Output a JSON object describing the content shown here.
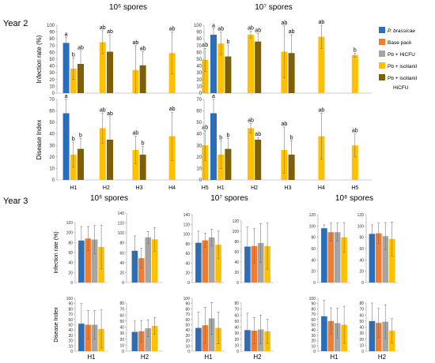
{
  "colors": {
    "P. brassicae": "#2A6EBB",
    "Base pack": "#EE7D31",
    "Pb + HiCFU": "#A5A5A5",
    "Pb + isotianil": "#FFC000",
    "Pb + isotianil HiCFU": "#7F5F00"
  },
  "legend": {
    "items": [
      {
        "key": "P. brassicae",
        "label": "P. brassicae"
      },
      {
        "key": "Base pack",
        "label": "Base pack"
      },
      {
        "key": "Pb + HiCFU",
        "label": "Pb + HiCFU"
      },
      {
        "key": "Pb + isotianil",
        "label": "Pb + isotianil"
      },
      {
        "key": "Pb + isotianil HiCFU",
        "label": "Pb + isotianil",
        "label2": "HiCFU"
      }
    ]
  },
  "section_titles": {
    "year2": "Year 2",
    "year3": "Year 3",
    "y2_col1": "10⁶ spores",
    "y2_col2": "10⁷ spores",
    "y3_col1": "10⁶ spores",
    "y3_col2": "10⁷ spores",
    "y3_col3": "10⁸ spores"
  },
  "y_labels": {
    "infection": "Infection rate (%)",
    "disease": "Disease Index"
  },
  "chart_data": [
    {
      "type": "bar",
      "id": "y2-10e6-infection",
      "ylabel": "Infection rate (%)",
      "ylim": [
        0,
        100
      ],
      "ticks": [
        0,
        10,
        20,
        30,
        40,
        50,
        60,
        70,
        80,
        90,
        100
      ],
      "categories": [
        "H1",
        "H2",
        "H3",
        "H4",
        "H5"
      ],
      "show_xticks": false,
      "groups": [
        {
          "cat": "H1",
          "bars": [
            {
              "s": "P. brassicae",
              "v": 74,
              "e": 8,
              "l": "a"
            },
            {
              "s": "Pb + isotianil",
              "v": 36,
              "e": 16,
              "l": "b"
            },
            {
              "s": "Pb + isotianil HiCFU",
              "v": 43,
              "e": 19,
              "l": "ab"
            }
          ]
        },
        {
          "cat": "H2",
          "bars": [
            {
              "s": "Pb + isotianil",
              "v": 75,
              "e": 17,
              "l": "ab"
            },
            {
              "s": "Pb + isotianil HiCFU",
              "v": 61,
              "e": 25,
              "l": "ab"
            }
          ]
        },
        {
          "cat": "H3",
          "bars": [
            {
              "s": "Pb + isotianil",
              "v": 34,
              "e": 36,
              "l": "ab"
            },
            {
              "s": "Pb + isotianil HiCFU",
              "v": 41,
              "e": 20,
              "l": "ab"
            }
          ]
        },
        {
          "cat": "H4",
          "bars": [
            {
              "s": "Pb + isotianil",
              "v": 59,
              "e": 31,
              "l": "ab"
            }
          ]
        },
        {
          "cat": "H5",
          "bars": [
            {
              "s": "Pb + isotianil",
              "v": 49,
              "e": 17,
              "l": "ab"
            }
          ]
        }
      ]
    },
    {
      "type": "bar",
      "id": "y2-10e7-infection",
      "ylabel": "",
      "ylim": [
        0,
        100
      ],
      "ticks": [
        0,
        10,
        20,
        30,
        40,
        50,
        60,
        70,
        80,
        90,
        100
      ],
      "categories": [
        "H1",
        "H2",
        "H3",
        "H4",
        "H5"
      ],
      "show_xticks": false,
      "groups": [
        {
          "cat": "H1",
          "bars": [
            {
              "s": "P. brassicae",
              "v": 86,
              "e": 9,
              "l": "a"
            },
            {
              "s": "Pb + isotianil",
              "v": 73,
              "e": 17,
              "l": "ab"
            },
            {
              "s": "Pb + isotianil HiCFU",
              "v": 54,
              "e": 17,
              "l": "b"
            }
          ]
        },
        {
          "cat": "H2",
          "bars": [
            {
              "s": "Pb + isotianil",
              "v": 86,
              "e": 5,
              "l": "ab"
            },
            {
              "s": "Pb + isotianil HiCFU",
              "v": 76,
              "e": 12,
              "l": "ab"
            }
          ]
        },
        {
          "cat": "H3",
          "bars": [
            {
              "s": "Pb + isotianil",
              "v": 61,
              "e": 38,
              "l": "ab"
            },
            {
              "s": "Pb + isotianil HiCFU",
              "v": 59,
              "e": 27,
              "l": "ab"
            }
          ]
        },
        {
          "cat": "H4",
          "bars": [
            {
              "s": "Pb + isotianil",
              "v": 83,
              "e": 17,
              "l": "ab"
            }
          ]
        },
        {
          "cat": "H5",
          "bars": [
            {
              "s": "Pb + isotianil",
              "v": 56,
              "e": 3,
              "l": "b"
            }
          ]
        }
      ]
    },
    {
      "type": "bar",
      "id": "y2-10e6-disease",
      "ylabel": "Disease Index",
      "ylim": [
        0,
        70
      ],
      "ticks": [
        0,
        10,
        20,
        30,
        40,
        50,
        60,
        70
      ],
      "categories": [
        "H1",
        "H2",
        "H3",
        "H4",
        "H5"
      ],
      "show_xticks": true,
      "groups": [
        {
          "cat": "H1",
          "bars": [
            {
              "s": "P. brassicae",
              "v": 58,
              "e": 12,
              "l": "a"
            },
            {
              "s": "Pb + isotianil",
              "v": 22,
              "e": 11,
              "l": "b"
            },
            {
              "s": "Pb + isotianil HiCFU",
              "v": 27,
              "e": 9,
              "l": "b"
            }
          ]
        },
        {
          "cat": "H2",
          "bars": [
            {
              "s": "Pb + isotianil",
              "v": 45,
              "e": 13,
              "l": "ab"
            },
            {
              "s": "Pb + isotianil HiCFU",
              "v": 35,
              "e": 20,
              "l": "ab"
            }
          ]
        },
        {
          "cat": "H3",
          "bars": [
            {
              "s": "Pb + isotianil",
              "v": 26,
              "e": 12,
              "l": "ab"
            },
            {
              "s": "Pb + isotianil HiCFU",
              "v": 22,
              "e": 7,
              "l": "b"
            }
          ]
        },
        {
          "cat": "H4",
          "bars": [
            {
              "s": "Pb + isotianil",
              "v": 38,
              "e": 21,
              "l": "ab"
            }
          ]
        },
        {
          "cat": "H5",
          "bars": [
            {
              "s": "Pb + isotianil",
              "v": 30,
              "e": 13,
              "l": "ab"
            }
          ]
        }
      ]
    },
    {
      "type": "bar",
      "id": "y2-10e7-disease",
      "ylabel": "",
      "ylim": [
        0,
        70
      ],
      "ticks": [
        0,
        10,
        20,
        30,
        40,
        50,
        60,
        70
      ],
      "categories": [
        "H1",
        "H2",
        "H3",
        "H4",
        "H5"
      ],
      "show_xticks": true,
      "groups": [
        {
          "cat": "H1",
          "bars": [
            {
              "s": "P. brassicae",
              "v": 58,
              "e": 12,
              "l": "a"
            },
            {
              "s": "Pb + isotianil",
              "v": 22,
              "e": 12,
              "l": "b"
            },
            {
              "s": "Pb + isotianil HiCFU",
              "v": 27,
              "e": 9,
              "l": "b"
            }
          ]
        },
        {
          "cat": "H2",
          "bars": [
            {
              "s": "Pb + isotianil",
              "v": 45,
              "e": 4,
              "l": "ab"
            },
            {
              "s": "Pb + isotianil HiCFU",
              "v": 35,
              "e": 2,
              "l": "ab"
            }
          ]
        },
        {
          "cat": "H3",
          "bars": [
            {
              "s": "Pb + isotianil",
              "v": 26,
              "e": 20,
              "l": "ab"
            },
            {
              "s": "Pb + isotianil HiCFU",
              "v": 22,
              "e": 12,
              "l": "b"
            }
          ]
        },
        {
          "cat": "H4",
          "bars": [
            {
              "s": "Pb + isotianil",
              "v": 38,
              "e": 20,
              "l": "ab"
            }
          ]
        },
        {
          "cat": "H5",
          "bars": [
            {
              "s": "Pb + isotianil",
              "v": 30,
              "e": 10,
              "l": "ab"
            }
          ]
        }
      ]
    },
    {
      "type": "bar",
      "id": "y3-10e6-H1-inf",
      "ylabel": "Infection rate (%)",
      "ylim": [
        0,
        120
      ],
      "ticks": [
        0,
        20,
        40,
        60,
        80,
        100,
        120
      ],
      "categories": [
        "H1"
      ],
      "show_xticks": false,
      "groups": [
        {
          "cat": "H1",
          "bars": [
            {
              "s": "P. brassicae",
              "v": 84,
              "e": 28
            },
            {
              "s": "Base pack",
              "v": 88,
              "e": 24
            },
            {
              "s": "Pb + HiCFU",
              "v": 86,
              "e": 28
            },
            {
              "s": "Pb + isotianil",
              "v": 71,
              "e": 44
            }
          ]
        }
      ]
    },
    {
      "type": "bar",
      "id": "y3-10e6-H2-inf",
      "ylabel": "",
      "ylim": [
        0,
        140
      ],
      "ticks": [
        0,
        20,
        40,
        60,
        80,
        100,
        120,
        140
      ],
      "categories": [
        "H2"
      ],
      "show_xticks": false,
      "groups": [
        {
          "cat": "H2",
          "bars": [
            {
              "s": "P. brassicae",
              "v": 64,
              "e": 30
            },
            {
              "s": "Base pack",
              "v": 49,
              "e": 20
            },
            {
              "s": "Pb + HiCFU",
              "v": 91,
              "e": 12
            },
            {
              "s": "Pb + isotianil",
              "v": 87,
              "e": 24
            }
          ]
        }
      ]
    },
    {
      "type": "bar",
      "id": "y3-10e7-H1-inf",
      "ylabel": "",
      "ylim": [
        0,
        140
      ],
      "ticks": [
        0,
        20,
        40,
        60,
        80,
        100,
        120,
        140
      ],
      "categories": [
        "H1"
      ],
      "show_xticks": false,
      "groups": [
        {
          "cat": "H1",
          "bars": [
            {
              "s": "P. brassicae",
              "v": 82,
              "e": 24
            },
            {
              "s": "Base pack",
              "v": 87,
              "e": 15
            },
            {
              "s": "Pb + HiCFU",
              "v": 93,
              "e": 17
            },
            {
              "s": "Pb + isotianil",
              "v": 78,
              "e": 28
            }
          ]
        }
      ]
    },
    {
      "type": "bar",
      "id": "y3-10e7-H2-inf",
      "ylabel": "",
      "ylim": [
        0,
        120
      ],
      "ticks": [
        0,
        20,
        40,
        60,
        80,
        100,
        120
      ],
      "categories": [
        "H2"
      ],
      "show_xticks": false,
      "groups": [
        {
          "cat": "H2",
          "bars": [
            {
              "s": "P. brassicae",
              "v": 70,
              "e": 38
            },
            {
              "s": "Base pack",
              "v": 71,
              "e": 34
            },
            {
              "s": "Pb + HiCFU",
              "v": 77,
              "e": 38
            },
            {
              "s": "Pb + isotianil",
              "v": 71,
              "e": 45
            }
          ]
        }
      ]
    },
    {
      "type": "bar",
      "id": "y3-10e8-H1-inf",
      "ylabel": "",
      "ylim": [
        0,
        120
      ],
      "ticks": [
        0,
        20,
        40,
        60,
        80,
        100,
        120
      ],
      "categories": [
        "H1"
      ],
      "show_xticks": false,
      "groups": [
        {
          "cat": "H1",
          "bars": [
            {
              "s": "P. brassicae",
              "v": 96,
              "e": 6
            },
            {
              "s": "Base pack",
              "v": 89,
              "e": 16
            },
            {
              "s": "Pb + HiCFU",
              "v": 89,
              "e": 16
            },
            {
              "s": "Pb + isotianil",
              "v": 80,
              "e": 26
            }
          ]
        }
      ]
    },
    {
      "type": "bar",
      "id": "y3-10e8-H2-inf",
      "ylabel": "",
      "ylim": [
        0,
        120
      ],
      "ticks": [
        0,
        20,
        40,
        60,
        80,
        100,
        120
      ],
      "categories": [
        "H2"
      ],
      "show_xticks": false,
      "groups": [
        {
          "cat": "H2",
          "bars": [
            {
              "s": "P. brassicae",
              "v": 86,
              "e": 16
            },
            {
              "s": "Base pack",
              "v": 87,
              "e": 18
            },
            {
              "s": "Pb + HiCFU",
              "v": 82,
              "e": 24
            },
            {
              "s": "Pb + isotianil",
              "v": 77,
              "e": 30
            }
          ]
        }
      ]
    },
    {
      "type": "bar",
      "id": "y3-10e6-H1-di",
      "ylabel": "Disease Index",
      "ylim": [
        0,
        100
      ],
      "ticks": [
        0,
        10,
        20,
        30,
        40,
        50,
        60,
        70,
        80,
        90,
        100
      ],
      "categories": [
        "H1"
      ],
      "show_xticks": true,
      "groups": [
        {
          "cat": "H1",
          "bars": [
            {
              "s": "P. brassicae",
              "v": 52,
              "e": 38
            },
            {
              "s": "Base pack",
              "v": 50,
              "e": 27
            },
            {
              "s": "Pb + HiCFU",
              "v": 50,
              "e": 27
            },
            {
              "s": "Pb + isotianil",
              "v": 42,
              "e": 36
            }
          ]
        }
      ]
    },
    {
      "type": "bar",
      "id": "y3-10e6-H2-di",
      "ylabel": "",
      "ylim": [
        0,
        80
      ],
      "ticks": [
        0,
        10,
        20,
        30,
        40,
        50,
        60,
        70,
        80
      ],
      "categories": [
        "H2"
      ],
      "show_xticks": true,
      "groups": [
        {
          "cat": "H2",
          "bars": [
            {
              "s": "P. brassicae",
              "v": 32,
              "e": 18
            },
            {
              "s": "Base pack",
              "v": 33,
              "e": 18
            },
            {
              "s": "Pb + HiCFU",
              "v": 38,
              "e": 14
            },
            {
              "s": "Pb + isotianil",
              "v": 42,
              "e": 14
            }
          ]
        }
      ]
    },
    {
      "type": "bar",
      "id": "y3-10e7-H1-di",
      "ylabel": "",
      "ylim": [
        0,
        100
      ],
      "ticks": [
        0,
        10,
        20,
        30,
        40,
        50,
        60,
        70,
        80,
        90,
        100
      ],
      "categories": [
        "H1"
      ],
      "show_xticks": true,
      "groups": [
        {
          "cat": "H1",
          "bars": [
            {
              "s": "P. brassicae",
              "v": 44,
              "e": 30
            },
            {
              "s": "Base pack",
              "v": 49,
              "e": 34
            },
            {
              "s": "Pb + HiCFU",
              "v": 62,
              "e": 30
            },
            {
              "s": "Pb + isotianil",
              "v": 44,
              "e": 30
            }
          ]
        }
      ]
    },
    {
      "type": "bar",
      "id": "y3-10e7-H2-di",
      "ylabel": "",
      "ylim": [
        0,
        80
      ],
      "ticks": [
        0,
        10,
        20,
        30,
        40,
        50,
        60,
        70,
        80
      ],
      "categories": [
        "H2"
      ],
      "show_xticks": true,
      "groups": [
        {
          "cat": "H2",
          "bars": [
            {
              "s": "P. brassicae",
              "v": 35,
              "e": 28
            },
            {
              "s": "Base pack",
              "v": 34,
              "e": 22
            },
            {
              "s": "Pb + HiCFU",
              "v": 36,
              "e": 24
            },
            {
              "s": "Pb + isotianil",
              "v": 33,
              "e": 20
            }
          ]
        }
      ]
    },
    {
      "type": "bar",
      "id": "y3-10e8-H1-di",
      "ylabel": "",
      "ylim": [
        0,
        100
      ],
      "ticks": [
        0,
        10,
        20,
        30,
        40,
        50,
        60,
        70,
        80,
        90,
        100
      ],
      "categories": [
        "H1"
      ],
      "show_xticks": true,
      "groups": [
        {
          "cat": "H1",
          "bars": [
            {
              "s": "P. brassicae",
              "v": 66,
              "e": 30
            },
            {
              "s": "Base pack",
              "v": 57,
              "e": 25
            },
            {
              "s": "Pb + HiCFU",
              "v": 53,
              "e": 28
            },
            {
              "s": "Pb + isotianil",
              "v": 50,
              "e": 35
            }
          ]
        }
      ]
    },
    {
      "type": "bar",
      "id": "y3-10e8-H2-di",
      "ylabel": "",
      "ylim": [
        0,
        80
      ],
      "ticks": [
        0,
        10,
        20,
        30,
        40,
        50,
        60,
        70,
        80
      ],
      "categories": [
        "H2"
      ],
      "show_xticks": true,
      "groups": [
        {
          "cat": "H2",
          "bars": [
            {
              "s": "P. brassicae",
              "v": 50,
              "e": 30
            },
            {
              "s": "Base pack",
              "v": 47,
              "e": 24
            },
            {
              "s": "Pb + HiCFU",
              "v": 49,
              "e": 28
            },
            {
              "s": "Pb + isotianil",
              "v": 34,
              "e": 20
            }
          ]
        }
      ]
    }
  ]
}
